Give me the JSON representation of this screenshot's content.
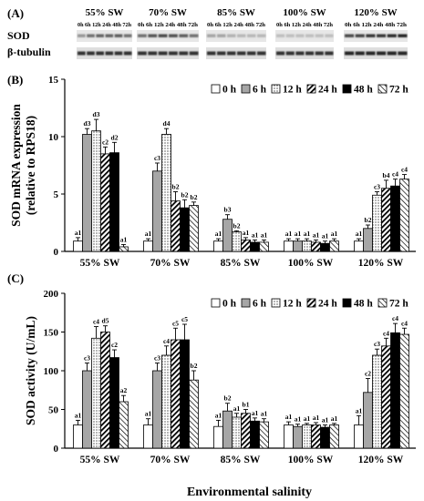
{
  "chart_data": [
    {
      "panel": "(A)",
      "type": "table",
      "groups": [
        "55% SW",
        "70% SW",
        "85% SW",
        "100% SW",
        "120% SW"
      ],
      "timepoints": [
        "0h",
        "6h",
        "12h",
        "24h",
        "48h",
        "72h"
      ],
      "rows": [
        "SOD",
        "β-tubulin"
      ],
      "band_intensity": {
        "SOD": [
          [
            0.4,
            0.55,
            0.6,
            0.6,
            0.62,
            0.55
          ],
          [
            0.55,
            0.65,
            0.7,
            0.68,
            0.62,
            0.55
          ],
          [
            0.35,
            0.35,
            0.3,
            0.28,
            0.28,
            0.28
          ],
          [
            0.25,
            0.25,
            0.25,
            0.25,
            0.25,
            0.25
          ],
          [
            0.7,
            0.72,
            0.78,
            0.78,
            0.82,
            0.85
          ]
        ],
        "β-tubulin": [
          [
            0.8,
            0.8,
            0.8,
            0.8,
            0.8,
            0.8
          ],
          [
            0.8,
            0.8,
            0.8,
            0.8,
            0.8,
            0.8
          ],
          [
            0.8,
            0.8,
            0.8,
            0.8,
            0.8,
            0.8
          ],
          [
            0.8,
            0.8,
            0.8,
            0.8,
            0.8,
            0.8
          ],
          [
            0.85,
            0.85,
            0.85,
            0.85,
            0.85,
            0.85
          ]
        ]
      }
    },
    {
      "panel": "(B)",
      "type": "bar",
      "ylabel": "SOD mRNA expression\n(relative to RPS18)",
      "ylim": [
        0,
        15
      ],
      "yticks": [
        0,
        5,
        10,
        15
      ],
      "categories": [
        "55% SW",
        "70% SW",
        "85% SW",
        "100% SW",
        "120% SW"
      ],
      "legend_position": "top-right",
      "series": [
        {
          "name": "0 h",
          "pattern": "white",
          "values": [
            0.9,
            0.9,
            0.9,
            0.9,
            0.9
          ],
          "errors": [
            0.3,
            0.2,
            0.2,
            0.2,
            0.2
          ],
          "labels": [
            "a1",
            "a1",
            "a1",
            "a1",
            "a1"
          ]
        },
        {
          "name": "6 h",
          "pattern": "gray",
          "values": [
            10.2,
            7.0,
            2.8,
            0.9,
            2.0
          ],
          "errors": [
            0.5,
            0.7,
            0.4,
            0.2,
            0.3
          ],
          "labels": [
            "d3",
            "c3",
            "b3",
            "a1",
            "b2"
          ]
        },
        {
          "name": "12 h",
          "pattern": "dots",
          "values": [
            10.5,
            10.2,
            1.7,
            0.9,
            4.9
          ],
          "errors": [
            1.0,
            0.5,
            0.1,
            0.2,
            0.3
          ],
          "labels": [
            "d3",
            "d4",
            "b2",
            "a1",
            "c3"
          ]
        },
        {
          "name": "24 h",
          "pattern": "hatch",
          "values": [
            8.5,
            4.4,
            1.0,
            0.8,
            5.5
          ],
          "errors": [
            0.6,
            0.8,
            0.2,
            0.2,
            0.7
          ],
          "labels": [
            "c2",
            "b2",
            "a1",
            "a1",
            "b4"
          ]
        },
        {
          "name": "48 h",
          "pattern": "black",
          "values": [
            8.6,
            3.8,
            0.8,
            0.7,
            5.7
          ],
          "errors": [
            0.9,
            0.7,
            0.2,
            0.2,
            0.6
          ],
          "labels": [
            "d2",
            "b2",
            "a1",
            "a1",
            "c4"
          ]
        },
        {
          "name": "72 h",
          "pattern": "cross",
          "values": [
            0.4,
            4.0,
            0.8,
            0.9,
            6.3
          ],
          "errors": [
            0.2,
            0.3,
            0.2,
            0.2,
            0.4
          ],
          "labels": [
            "a1",
            "b2",
            "a1",
            "a1",
            "c4"
          ]
        }
      ]
    },
    {
      "panel": "(C)",
      "type": "bar",
      "ylabel": "SOD activity (U/mL)",
      "xlabel": "Environmental salinity",
      "ylim": [
        0,
        200
      ],
      "yticks": [
        0,
        50,
        100,
        150,
        200
      ],
      "categories": [
        "55% SW",
        "70% SW",
        "85% SW",
        "100% SW",
        "120% SW"
      ],
      "legend_position": "top-right",
      "series": [
        {
          "name": "0 h",
          "pattern": "white",
          "values": [
            30,
            30,
            28,
            30,
            30
          ],
          "errors": [
            6,
            8,
            8,
            4,
            12
          ],
          "labels": [
            "a1",
            "a1",
            "a1",
            "a1",
            "a1"
          ]
        },
        {
          "name": "6 h",
          "pattern": "gray",
          "values": [
            100,
            100,
            48,
            28,
            72
          ],
          "errors": [
            10,
            10,
            10,
            3,
            18
          ],
          "labels": [
            "c3",
            "c3",
            "b2",
            "a1",
            "c2"
          ]
        },
        {
          "name": "12 h",
          "pattern": "dots",
          "values": [
            142,
            120,
            40,
            30,
            120
          ],
          "errors": [
            15,
            12,
            5,
            2,
            8
          ],
          "labels": [
            "c4",
            "c4",
            "a1",
            "a1",
            "c3"
          ]
        },
        {
          "name": "24 h",
          "pattern": "hatch",
          "values": [
            150,
            140,
            45,
            30,
            132
          ],
          "errors": [
            8,
            15,
            5,
            3,
            10
          ],
          "labels": [
            "d5",
            "c5",
            "b1",
            "a1",
            "c4"
          ]
        },
        {
          "name": "48 h",
          "pattern": "black",
          "values": [
            117,
            140,
            35,
            27,
            149
          ],
          "errors": [
            10,
            20,
            4,
            3,
            12
          ],
          "labels": [
            "c2",
            "c5",
            "a1",
            "a1",
            "c4"
          ]
        },
        {
          "name": "72 h",
          "pattern": "cross",
          "values": [
            60,
            88,
            34,
            30,
            147
          ],
          "errors": [
            8,
            12,
            4,
            2,
            8
          ],
          "labels": [
            "a2",
            "b2",
            "a1",
            "a1",
            "c4"
          ]
        }
      ]
    }
  ],
  "panelA": {
    "label": "(A)",
    "row_labels": [
      "SOD",
      "β-tubulin"
    ],
    "group_titles": [
      "55% SW",
      "70% SW",
      "85% SW",
      "100% SW",
      "120% SW"
    ],
    "lane_labels": "0h 6h 12h 24h 48h 72h"
  },
  "panelB": {
    "label": "(B)"
  },
  "panelC": {
    "label": "(C)"
  },
  "legend_labels": [
    "0 h",
    "6 h",
    "12 h",
    "24 h",
    "48 h",
    "72 h"
  ]
}
